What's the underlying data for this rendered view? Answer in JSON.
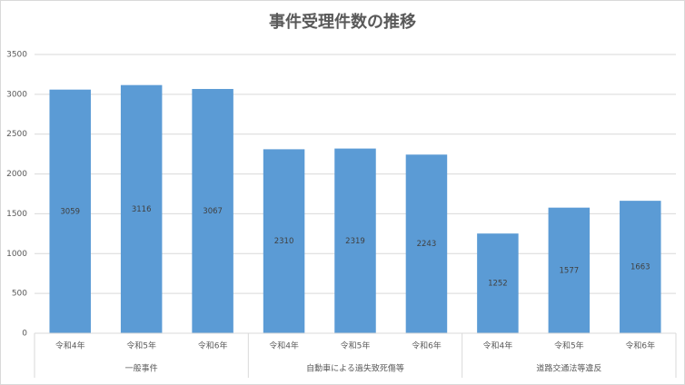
{
  "chart_data": {
    "type": "bar",
    "title": "事件受理件数の推移",
    "categories": [
      "令和4年",
      "令和5年",
      "令和6年",
      "令和4年",
      "令和5年",
      "令和6年",
      "令和4年",
      "令和5年",
      "令和6年"
    ],
    "groups": [
      "一般事件",
      "自動車による過失致死傷等",
      "道路交通法等違反"
    ],
    "values": [
      3059,
      3116,
      3067,
      2310,
      2319,
      2243,
      1252,
      1577,
      1663
    ],
    "color": "#5b9bd5",
    "ylim": [
      0,
      3500
    ],
    "yticks": [
      0,
      500,
      1000,
      1500,
      2000,
      2500,
      3000,
      3500
    ],
    "grid": true
  }
}
